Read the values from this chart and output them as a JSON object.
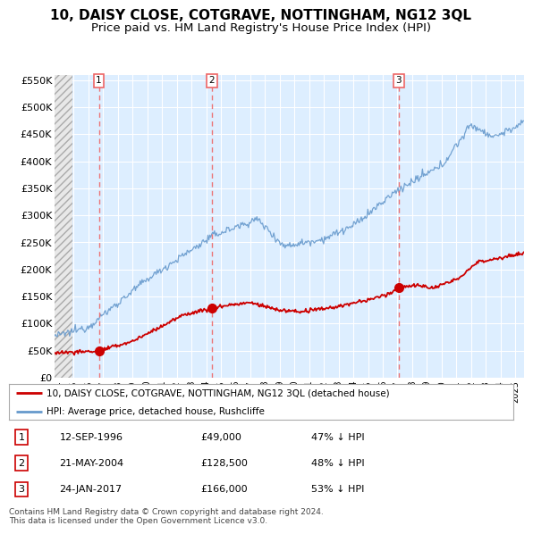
{
  "title": "10, DAISY CLOSE, COTGRAVE, NOTTINGHAM, NG12 3QL",
  "subtitle": "Price paid vs. HM Land Registry's House Price Index (HPI)",
  "title_fontsize": 11,
  "subtitle_fontsize": 9.5,
  "bg_color": "#ffffff",
  "plot_bg_color": "#ddeeff",
  "hatch_bg_color": "#e8e8e8",
  "grid_color": "#ffffff",
  "x_start": 1993.7,
  "x_end": 2025.6,
  "y_min": 0,
  "y_max": 560000,
  "y_ticks": [
    0,
    50000,
    100000,
    150000,
    200000,
    250000,
    300000,
    350000,
    400000,
    450000,
    500000,
    550000
  ],
  "y_tick_labels": [
    "£0",
    "£50K",
    "£100K",
    "£150K",
    "£200K",
    "£250K",
    "£300K",
    "£350K",
    "£400K",
    "£450K",
    "£500K",
    "£550K"
  ],
  "sale_color": "#cc0000",
  "hpi_color": "#6699cc",
  "sale_dates": [
    1996.71,
    2004.39,
    2017.07
  ],
  "sale_prices": [
    49000,
    128500,
    166000
  ],
  "vertical_line_color": "#ee6666",
  "marker_labels": [
    "1",
    "2",
    "3"
  ],
  "legend_sale": "10, DAISY CLOSE, COTGRAVE, NOTTINGHAM, NG12 3QL (detached house)",
  "legend_hpi": "HPI: Average price, detached house, Rushcliffe",
  "table_rows": [
    [
      "1",
      "12-SEP-1996",
      "£49,000",
      "47% ↓ HPI"
    ],
    [
      "2",
      "21-MAY-2004",
      "£128,500",
      "48% ↓ HPI"
    ],
    [
      "3",
      "24-JAN-2017",
      "£166,000",
      "53% ↓ HPI"
    ]
  ],
  "footer": "Contains HM Land Registry data © Crown copyright and database right 2024.\nThis data is licensed under the Open Government Licence v3.0.",
  "x_tick_years": [
    1994,
    1995,
    1996,
    1997,
    1998,
    1999,
    2000,
    2001,
    2002,
    2003,
    2004,
    2005,
    2006,
    2007,
    2008,
    2009,
    2010,
    2011,
    2012,
    2013,
    2014,
    2015,
    2016,
    2017,
    2018,
    2019,
    2020,
    2021,
    2022,
    2023,
    2024,
    2025
  ],
  "hatch_end_year": 1994.5
}
